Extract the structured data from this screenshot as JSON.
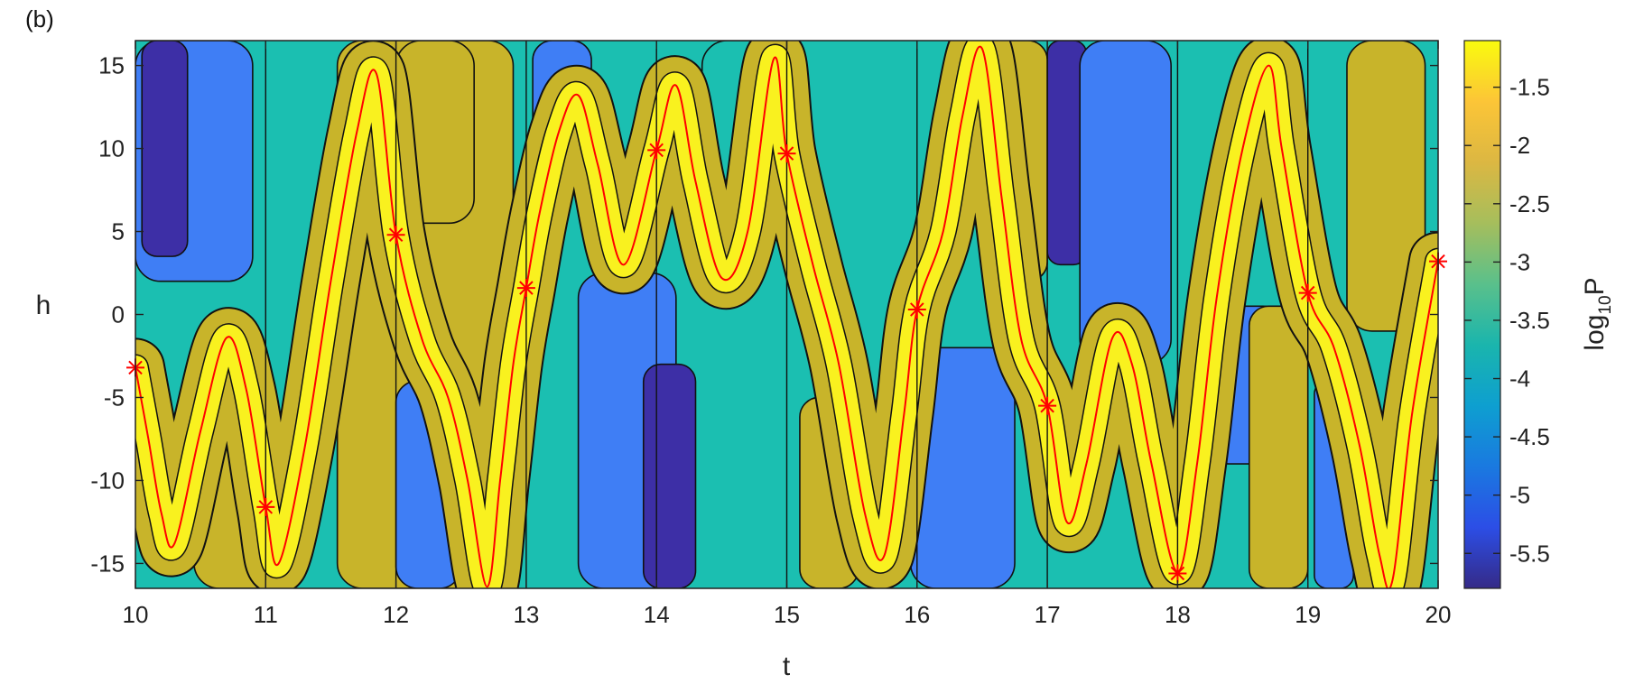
{
  "panel_label": "(b)",
  "chart_data": {
    "type": "heatmap",
    "xlabel": "t",
    "ylabel": "h",
    "xlim": [
      10,
      20
    ],
    "ylim": [
      -16.5,
      16.5
    ],
    "xticks": [
      10,
      11,
      12,
      13,
      14,
      15,
      16,
      17,
      18,
      19,
      20
    ],
    "yticks": [
      15,
      10,
      5,
      0,
      -5,
      -10,
      -15
    ],
    "colorbar": {
      "label_base": "log",
      "label_sub": "10",
      "label_var": "P",
      "range": [
        -5.8,
        -1.1
      ],
      "ticks": [
        -1.5,
        -2,
        -2.5,
        -3,
        -3.5,
        -4,
        -4.5,
        -5,
        -5.5
      ],
      "colormap": "parula"
    },
    "contour_levels": [
      -1.5,
      -2.5,
      -3.5,
      -4.5
    ],
    "level_colors": {
      "above_-1.5": "#f9f11f",
      "-2.5_to_-1.5": "#c8b42a",
      "-3.5_to_-2.5": "#1bbfb1",
      "-4.5_to_-3.5": "#3f7ef5",
      "below_-4.5": "#3d2fa6"
    },
    "ridge_line_color": "#ff0000",
    "ridge_curve": {
      "t": [
        10.0,
        10.1,
        10.2,
        10.3,
        10.5,
        10.7,
        10.85,
        11.0,
        11.1,
        11.3,
        11.5,
        11.7,
        11.85,
        12.0,
        12.2,
        12.4,
        12.55,
        12.7,
        12.8,
        12.9,
        13.0,
        13.1,
        13.25,
        13.4,
        13.55,
        13.75,
        14.0,
        14.15,
        14.3,
        14.5,
        14.7,
        14.9,
        15.0,
        15.2,
        15.4,
        15.6,
        15.75,
        15.9,
        16.0,
        16.2,
        16.35,
        16.5,
        16.65,
        16.8,
        17.0,
        17.15,
        17.3,
        17.5,
        17.65,
        17.8,
        18.0,
        18.15,
        18.3,
        18.5,
        18.7,
        18.8,
        19.0,
        19.2,
        19.4,
        19.55,
        19.65,
        19.8,
        20.0
      ],
      "h": [
        -3.2,
        -7.5,
        -12.0,
        -13.8,
        -7.0,
        -1.4,
        -4.5,
        -11.6,
        -15.0,
        -8.0,
        2.0,
        11.0,
        14.5,
        4.8,
        -1.5,
        -5.0,
        -10.0,
        -16.4,
        -10.0,
        -3.0,
        1.6,
        6.0,
        11.0,
        13.2,
        9.0,
        3.0,
        9.9,
        13.8,
        8.0,
        2.2,
        5.0,
        15.4,
        9.7,
        3.0,
        -3.0,
        -12.0,
        -14.5,
        -6.0,
        0.3,
        5.0,
        12.0,
        16.0,
        7.0,
        -1.5,
        -5.5,
        -12.5,
        -9.0,
        -1.4,
        -3.0,
        -9.0,
        -15.5,
        -9.0,
        1.0,
        10.0,
        15.0,
        10.0,
        1.3,
        -2.0,
        -8.0,
        -14.5,
        -16.0,
        -6.0,
        3.2
      ]
    },
    "markers": {
      "t": [
        10,
        11,
        12,
        13,
        14,
        15,
        16,
        17,
        18,
        19,
        20
      ],
      "h": [
        -3.2,
        -11.6,
        4.8,
        1.6,
        9.9,
        9.7,
        0.3,
        -5.5,
        -15.6,
        1.3,
        3.2
      ],
      "symbol": "asterisk",
      "color": "#ff0000"
    }
  }
}
